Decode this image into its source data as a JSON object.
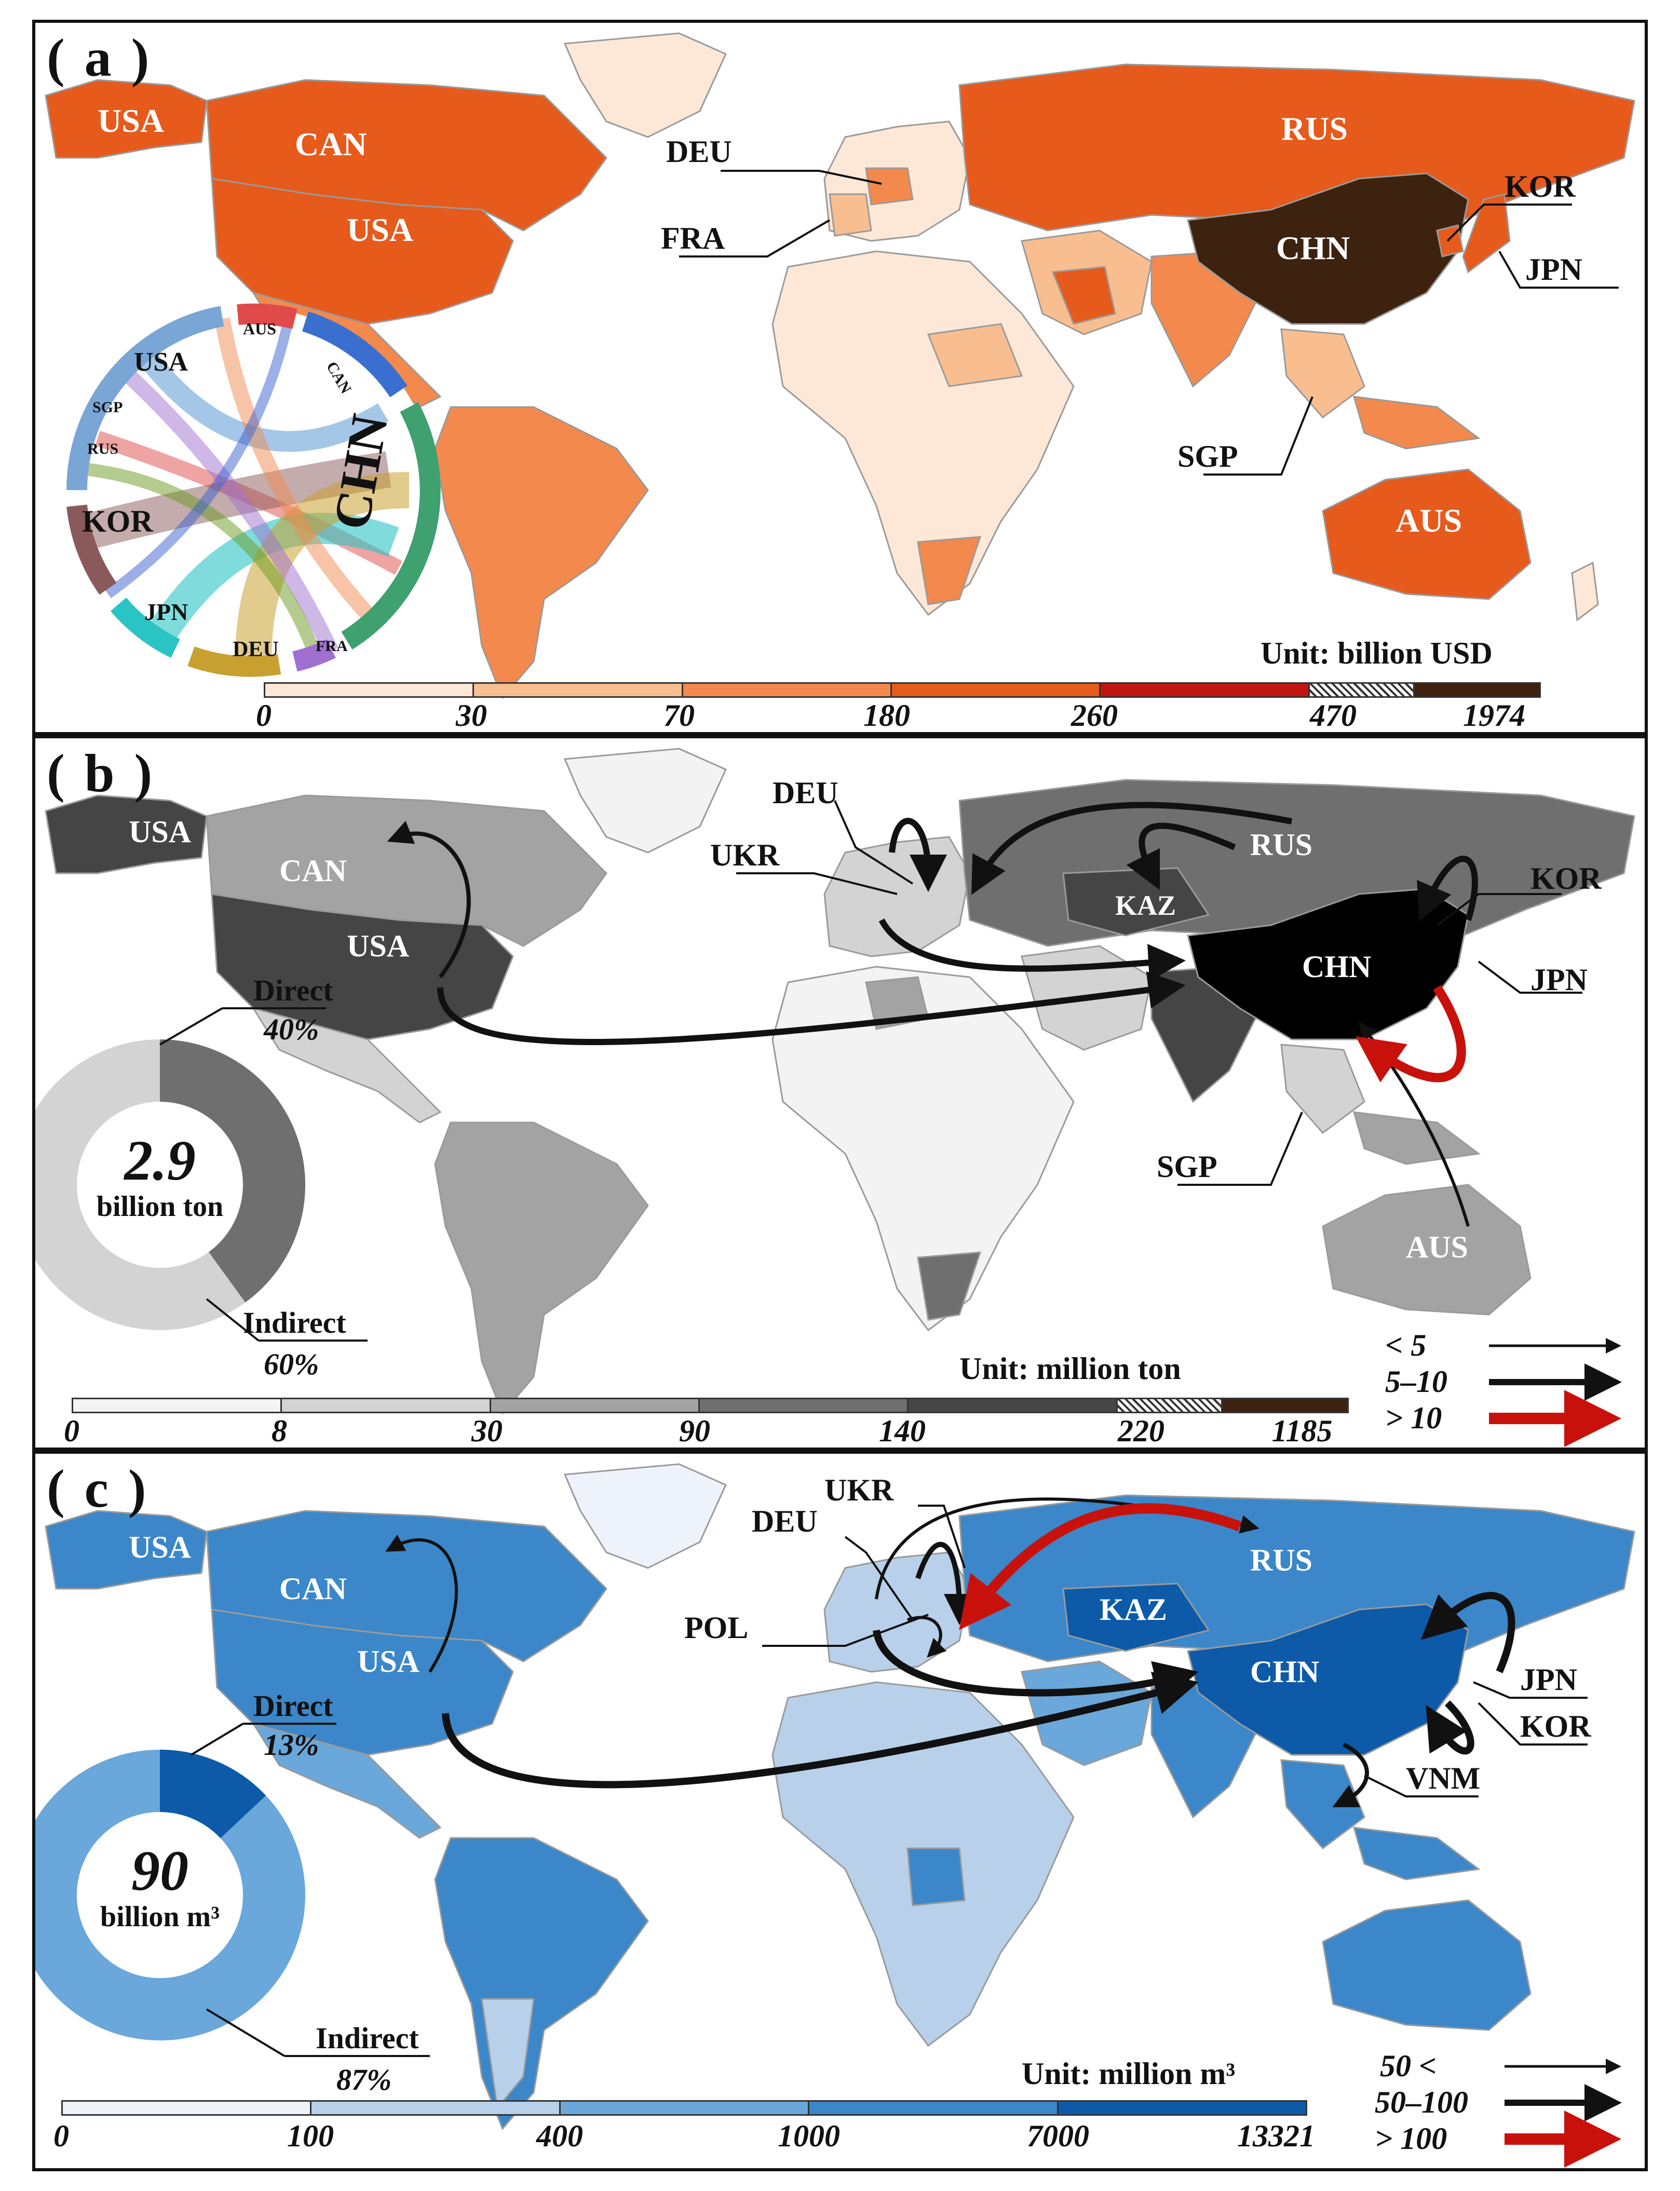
{
  "colors": {
    "ocean": "#ffffff",
    "border": "#9a9a9a",
    "a_scale": [
      "#fde8d8",
      "#f9be8f",
      "#f3894c",
      "#e65a1c",
      "#c1150f",
      "#3d2210"
    ],
    "b_scale": [
      "#f3f3f3",
      "#d3d3d3",
      "#a3a3a3",
      "#6f6f6f",
      "#454545",
      "#000000"
    ],
    "c_scale": [
      "#eef3fb",
      "#b8d0ea",
      "#6aa7da",
      "#3b87c9",
      "#0d5aa8"
    ],
    "arrow_red": "#c8110b",
    "arrow_black": "#111111"
  },
  "panel_a": {
    "label": "( a )",
    "countries": [
      "USA",
      "CAN",
      "USA",
      "DEU",
      "FRA",
      "RUS",
      "KOR",
      "CHN",
      "JPN",
      "SGP",
      "AUS"
    ],
    "chord_labels": [
      "USA",
      "AUS",
      "CAN",
      "SGP",
      "RUS",
      "KOR",
      "JPN",
      "DEU",
      "FRA",
      "CHN"
    ],
    "unit": "Unit: billion USD",
    "ticks": [
      "0",
      "30",
      "70",
      "180",
      "260",
      "470",
      "1974"
    ]
  },
  "panel_b": {
    "label": "( b )",
    "countries": [
      "USA",
      "CAN",
      "USA",
      "DEU",
      "UKR",
      "RUS",
      "KAZ",
      "CHN",
      "KOR",
      "JPN",
      "SGP",
      "AUS"
    ],
    "donut": {
      "total": "2.9",
      "total_unit": "billion ton",
      "direct_label": "Direct",
      "direct_pct": "40%",
      "indirect_label": "Indirect",
      "indirect_pct": "60%",
      "direct_value": 40,
      "indirect_value": 60
    },
    "unit": "Unit: million ton",
    "ticks": [
      "0",
      "8",
      "30",
      "90",
      "140",
      "220",
      "1185"
    ],
    "arrow_legend": [
      "< 5",
      "5–10",
      "> 10"
    ]
  },
  "panel_c": {
    "label": "( c )",
    "countries": [
      "USA",
      "CAN",
      "USA",
      "UKR",
      "DEU",
      "POL",
      "RUS",
      "KAZ",
      "CHN",
      "JPN",
      "KOR",
      "VNM"
    ],
    "donut": {
      "total": "90",
      "total_unit": "billion m³",
      "direct_label": "Direct",
      "direct_pct": "13%",
      "indirect_label": "Indirect",
      "indirect_pct": "87%",
      "direct_value": 13,
      "indirect_value": 87
    },
    "unit": "Unit: million m³",
    "ticks": [
      "0",
      "100",
      "400",
      "1000",
      "7000",
      "13321"
    ],
    "arrow_legend": [
      "50 <",
      "50–100",
      "> 100"
    ]
  }
}
